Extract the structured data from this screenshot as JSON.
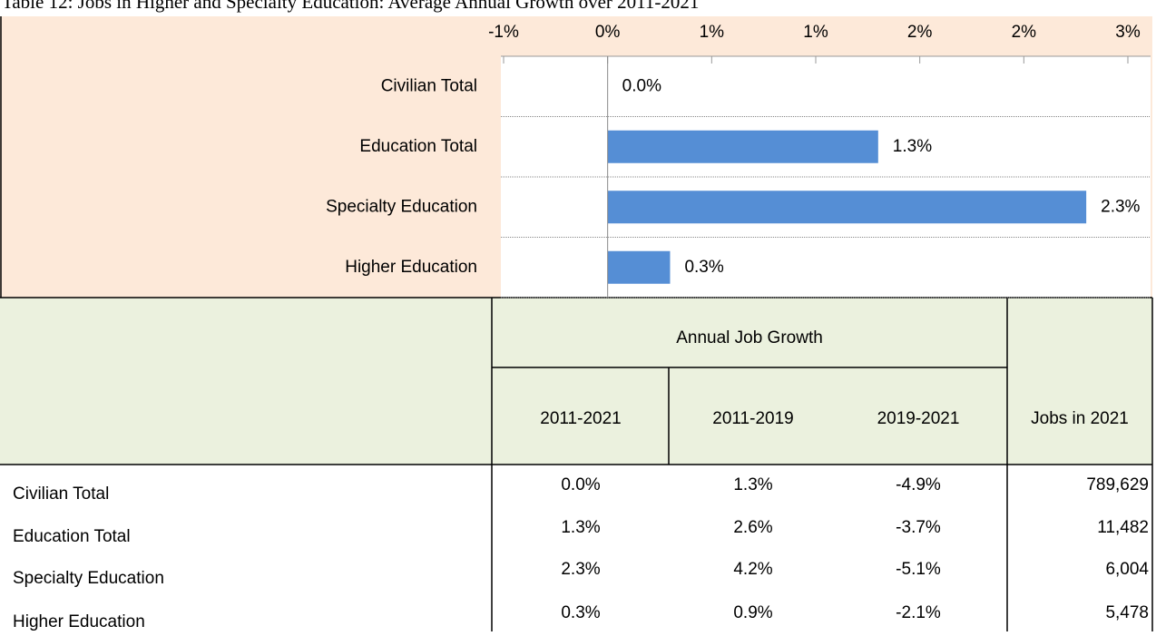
{
  "title": "Table 12: Jobs in Higher and Specialty Education: Average Annual Growth over 2011-2021",
  "chart_data": {
    "type": "bar",
    "orientation": "horizontal",
    "categories": [
      "Civilian Total",
      "Education Total",
      "Specialty Education",
      "Higher Education"
    ],
    "values": [
      0.0,
      1.3,
      2.3,
      0.3
    ],
    "value_labels": [
      "0.0%",
      "1.3%",
      "2.3%",
      "0.3%"
    ],
    "color": "#558ed5",
    "xlim": [
      -0.5,
      2.5
    ],
    "xticks": [
      {
        "value": -0.5,
        "label": "-1%"
      },
      {
        "value": 0,
        "label": "0%"
      },
      {
        "value": 0.5,
        "label": "1%"
      },
      {
        "value": 1,
        "label": "1%"
      },
      {
        "value": 1.5,
        "label": "2%"
      },
      {
        "value": 2,
        "label": "2%"
      },
      {
        "value": 2.5,
        "label": "3%"
      }
    ],
    "grid": true
  },
  "table": {
    "group_header": "Annual Job Growth",
    "columns": [
      "2011-2021",
      "2011-2019",
      "2019-2021",
      "Jobs in 2021"
    ],
    "rows": [
      [
        "Civilian Total",
        "0.0%",
        "1.3%",
        "-4.9%",
        "789,629"
      ],
      [
        "Education Total",
        "1.3%",
        "2.6%",
        "-3.7%",
        "11,482"
      ],
      [
        "Specialty Education",
        "2.3%",
        "4.2%",
        "-5.1%",
        "6,004"
      ],
      [
        "Higher Education",
        "0.3%",
        "0.9%",
        "-2.1%",
        "5,478"
      ]
    ]
  }
}
